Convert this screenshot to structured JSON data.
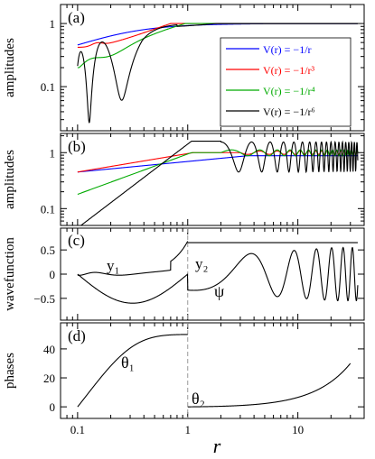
{
  "chart_data": {
    "type": "line",
    "xlabel": "r",
    "xscale": "log",
    "xlim": [
      0.07,
      40
    ],
    "xticks": [
      0.1,
      1,
      10
    ],
    "xticklabels": [
      "0.1",
      "1",
      "10"
    ],
    "panels": [
      {
        "label": "(a)",
        "ylabel": "amplitudes",
        "yscale": "log",
        "ylim": [
          0.02,
          2
        ],
        "yticks": [
          0.1,
          1
        ],
        "yticklabels": [
          "0.1",
          "1"
        ],
        "legend_position": "right",
        "series": [
          {
            "name": "V(r) = −1/r",
            "color": "#0000ff",
            "kind": "a_coulomb"
          },
          {
            "name": "V(r) = −1/r³",
            "color": "#ff0000",
            "kind": "a_r3"
          },
          {
            "name": "V(r) = −1/r⁴",
            "color": "#00aa00",
            "kind": "a_r4"
          },
          {
            "name": "V(r) = −1/r⁶",
            "color": "#000000",
            "kind": "a_r6"
          }
        ]
      },
      {
        "label": "(b)",
        "ylabel": "amplitudes",
        "yscale": "log",
        "ylim": [
          0.05,
          2.2
        ],
        "yticks": [
          0.1,
          1
        ],
        "yticklabels": [
          "0.1",
          "1"
        ],
        "series": [
          {
            "color": "#0000ff",
            "kind": "b_coulomb"
          },
          {
            "color": "#ff0000",
            "kind": "b_r3"
          },
          {
            "color": "#00aa00",
            "kind": "b_r4"
          },
          {
            "color": "#000000",
            "kind": "b_r6"
          }
        ]
      },
      {
        "label": "(c)",
        "ylabel": "wavefunction",
        "yscale": "linear",
        "ylim": [
          -0.95,
          0.95
        ],
        "yticks": [
          -0.5,
          0,
          0.5
        ],
        "yticklabels": [
          "−0.5",
          "0",
          "0.5"
        ],
        "annotations": {
          "y1": "y₁",
          "y2": "y₂",
          "psi": "ψ"
        },
        "series": [
          {
            "color": "#000000",
            "kind": "c_y1"
          },
          {
            "color": "#000000",
            "kind": "c_psi"
          },
          {
            "color": "#000000",
            "kind": "c_y2"
          }
        ]
      },
      {
        "label": "(d)",
        "ylabel": "phases",
        "yscale": "linear",
        "ylim": [
          -8,
          58
        ],
        "yticks": [
          0,
          20,
          40
        ],
        "yticklabels": [
          "0",
          "20",
          "40"
        ],
        "annotations": {
          "theta1": "θ₁",
          "theta2": "θ₂"
        },
        "series": [
          {
            "color": "#000000",
            "kind": "d_theta1"
          },
          {
            "color": "#000000",
            "kind": "d_theta2"
          }
        ]
      }
    ],
    "divider_x": 1
  }
}
